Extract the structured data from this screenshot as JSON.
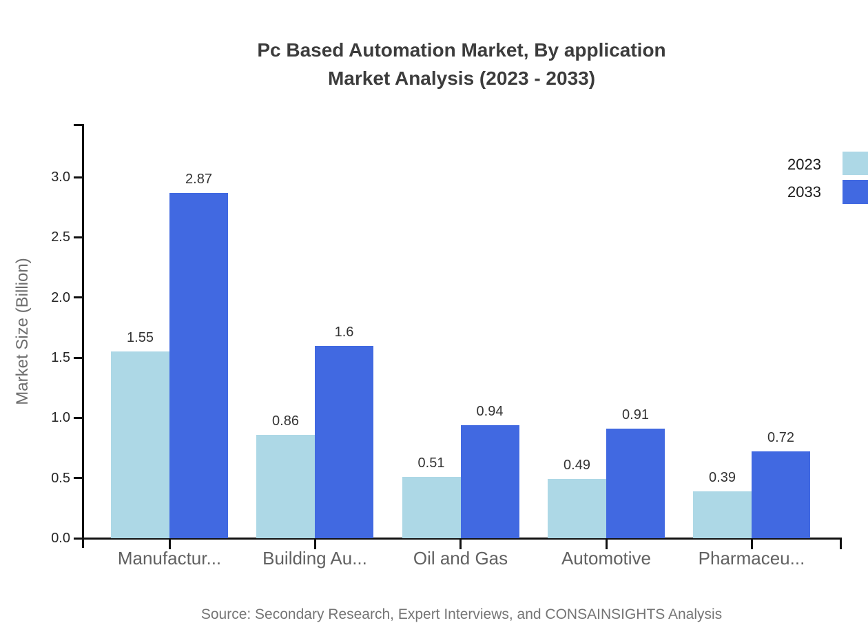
{
  "title": {
    "line1": "Pc Based Automation Market, By application",
    "line2": "Market Analysis (2023 - 2033)"
  },
  "source": "Source: Secondary Research, Expert Interviews, and CONSAINSIGHTS Analysis",
  "chart_data": {
    "type": "bar",
    "title": "Pc Based Automation Market, By application Market Analysis (2023 - 2033)",
    "categories": [
      "Manufactur...",
      "Building Au...",
      "Oil and Gas",
      "Automotive",
      "Pharmaceu..."
    ],
    "series": [
      {
        "name": "2023",
        "color": "#ADD8E6",
        "values": [
          1.55,
          0.86,
          0.51,
          0.49,
          0.39
        ]
      },
      {
        "name": "2033",
        "color": "#4169E1",
        "values": [
          2.87,
          1.6,
          0.94,
          0.91,
          0.72
        ]
      }
    ],
    "xlabel": "",
    "ylabel": "Market Size (Billion)",
    "yticks": [
      "0.0",
      "0.5",
      "1.0",
      "1.5",
      "2.0",
      "2.5",
      "3.0"
    ],
    "ylim": [
      0,
      3.0
    ],
    "grid": false,
    "legend_position": "top-right",
    "axis_color": "#111111"
  }
}
